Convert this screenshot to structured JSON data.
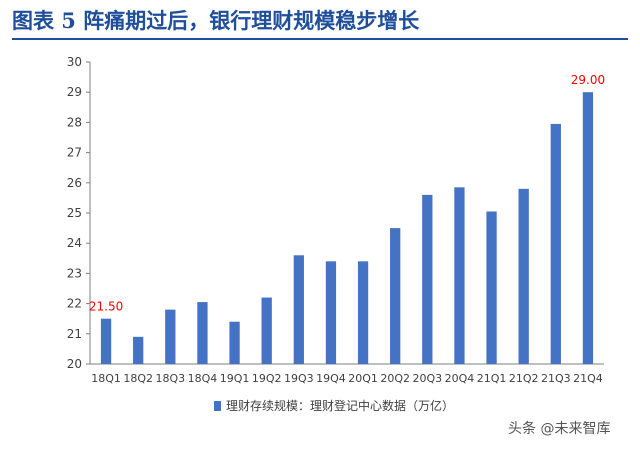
{
  "header": {
    "title": "图表 5   阵痛期过后，银行理财规模稳步增长"
  },
  "watermark": "头条 @未来智库",
  "colors": {
    "bar": "#4472c4",
    "annotation": "#ff0000",
    "title": "#1f4e9a"
  },
  "chart_data": {
    "type": "bar",
    "title": "",
    "xlabel": "",
    "ylabel": "",
    "categories": [
      "18Q1",
      "18Q2",
      "18Q3",
      "18Q4",
      "19Q1",
      "19Q2",
      "19Q3",
      "19Q4",
      "20Q1",
      "20Q2",
      "20Q3",
      "20Q4",
      "21Q1",
      "21Q2",
      "21Q3",
      "21Q4"
    ],
    "series": [
      {
        "name": "理财存续规模：理财登记中心数据（万亿）",
        "values": [
          21.5,
          20.9,
          21.8,
          22.05,
          21.4,
          22.2,
          23.6,
          23.4,
          23.4,
          24.5,
          25.6,
          25.85,
          25.05,
          25.8,
          27.95,
          29.0
        ]
      }
    ],
    "ylim": [
      20,
      30
    ],
    "yticks": [
      20,
      21,
      22,
      23,
      24,
      25,
      26,
      27,
      28,
      29,
      30
    ],
    "data_labels": [
      {
        "category": "18Q1",
        "text": "21.50"
      },
      {
        "category": "21Q4",
        "text": "29.00"
      }
    ],
    "grid": false,
    "legend_position": "bottom"
  }
}
